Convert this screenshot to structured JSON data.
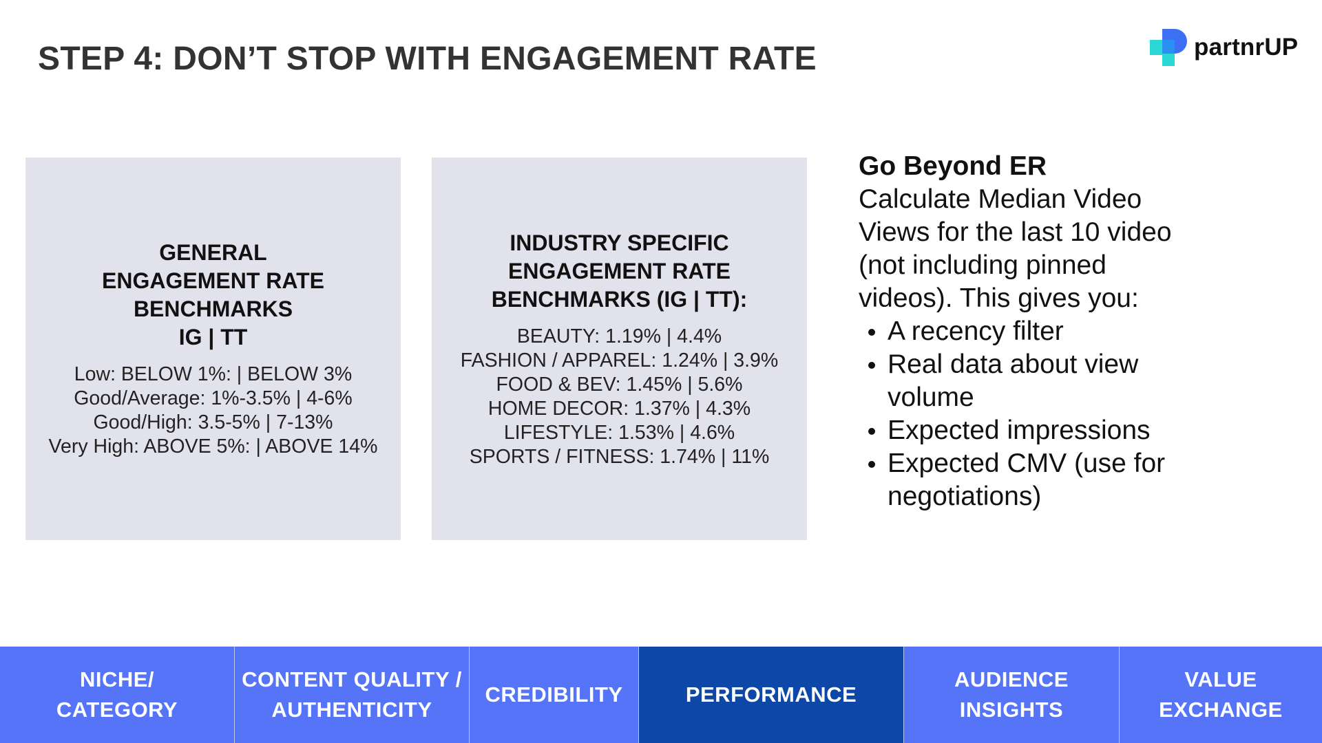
{
  "header": {
    "title": "STEP 4: DON’T STOP WITH ENGAGEMENT RATE",
    "logo_text": "partnrUP"
  },
  "general": {
    "title_lines": [
      "GENERAL",
      "ENGAGEMENT RATE",
      "BENCHMARKS",
      "IG | TT"
    ],
    "lines": [
      "Low: BELOW 1%: | BELOW 3%",
      "Good/Average: 1%-3.5% | 4-6%",
      "Good/High: 3.5-5% | 7-13%",
      "Very High: ABOVE 5%: | ABOVE 14%"
    ]
  },
  "industry": {
    "title_lines": [
      "INDUSTRY SPECIFIC",
      "ENGAGEMENT RATE",
      "BENCHMARKS (IG | TT):"
    ],
    "lines": [
      "BEAUTY: 1.19% | 4.4%",
      "FASHION / APPAREL: 1.24% | 3.9%",
      "FOOD & BEV: 1.45% | 5.6%",
      "HOME DECOR: 1.37% | 4.3%",
      "LIFESTYLE: 1.53% | 4.6%",
      "SPORTS / FITNESS: 1.74% | 11%"
    ]
  },
  "beyond": {
    "title": "Go Beyond ER",
    "body_lines": [
      "Calculate Median Video",
      "Views for the last 10 video",
      "(not including pinned",
      "videos). This gives you:"
    ],
    "bullets": [
      [
        "A recency filter"
      ],
      [
        "Real data about  view",
        "volume"
      ],
      [
        "Expected impressions"
      ],
      [
        "Expected CMV (use for",
        "negotiations)"
      ]
    ]
  },
  "nav": {
    "items": [
      {
        "lines": [
          "NICHE/",
          "CATEGORY"
        ],
        "active": false
      },
      {
        "lines": [
          "CONTENT QUALITY /",
          "AUTHENTICITY"
        ],
        "active": false
      },
      {
        "lines": [
          "CREDIBILITY"
        ],
        "active": false
      },
      {
        "lines": [
          "PERFORMANCE"
        ],
        "active": true
      },
      {
        "lines": [
          "AUDIENCE",
          "INSIGHTS"
        ],
        "active": false
      },
      {
        "lines": [
          "VALUE",
          "EXCHANGE"
        ],
        "active": false
      }
    ]
  },
  "colors": {
    "nav_bg": "#5574f7",
    "nav_active_bg": "#0d47a8",
    "box_bg": "#e2e2ec",
    "title_color": "#333333",
    "logo_blue": "#3d6ff5",
    "logo_teal": "#2ad6d6"
  }
}
